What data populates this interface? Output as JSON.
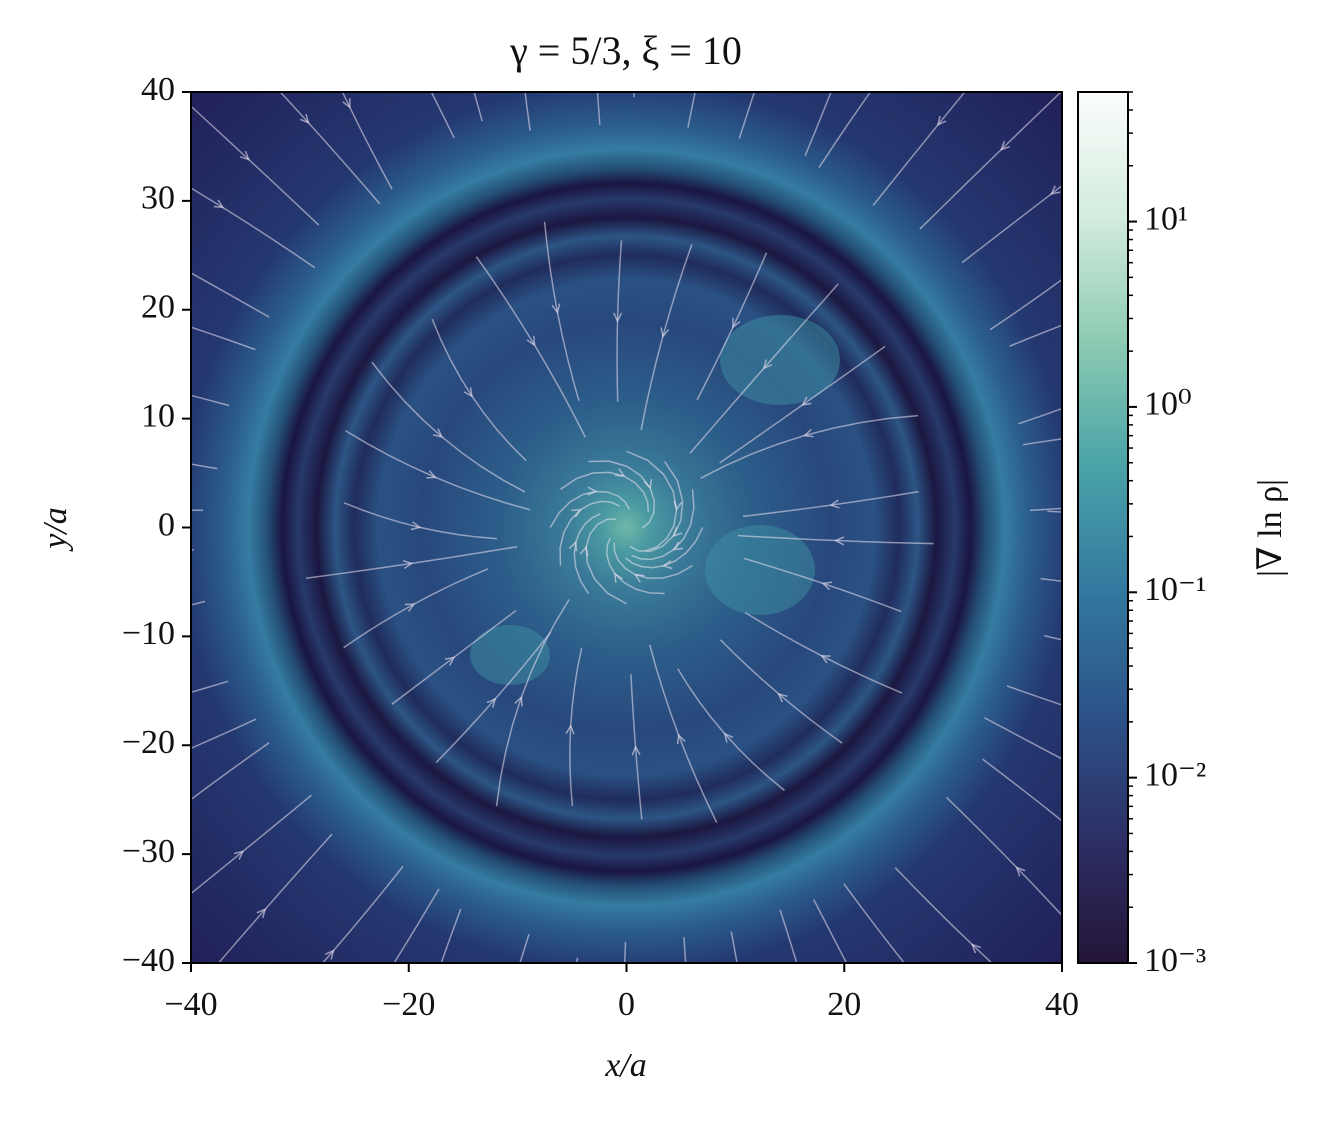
{
  "chart_data": {
    "type": "heatmap",
    "title": "γ = 5/3, ξ = 10",
    "x_label": "x/a",
    "y_label": "y/a",
    "xlim": [
      -40,
      40
    ],
    "ylim": [
      -40,
      40
    ],
    "xticks": [
      {
        "value": -40,
        "label": "−40"
      },
      {
        "value": -20,
        "label": "−20"
      },
      0,
      20,
      40
    ],
    "yticks": [
      {
        "value": -40,
        "label": "−40"
      },
      {
        "value": -30,
        "label": "−30"
      },
      {
        "value": -20,
        "label": "−20"
      },
      {
        "value": -10,
        "label": "−10"
      },
      0,
      10,
      20,
      30,
      40
    ],
    "colorbar": {
      "label": "|∇ ln ρ|",
      "scale": "log",
      "lim": [
        0.001,
        50
      ],
      "ticks": [
        {
          "value": 0.001,
          "label": "10⁻³"
        },
        {
          "value": 0.01,
          "label": "10⁻²"
        },
        {
          "value": 0.1,
          "label": "10⁻¹"
        },
        {
          "value": 1,
          "label": "10⁰"
        },
        {
          "value": 10,
          "label": "10¹"
        }
      ],
      "colors": [
        "#241538",
        "#2d2f66",
        "#2c5388",
        "#33799f",
        "#4aa3a8",
        "#8dcbb2",
        "#d3ecdf",
        "#fbfdfb"
      ]
    }
  }
}
